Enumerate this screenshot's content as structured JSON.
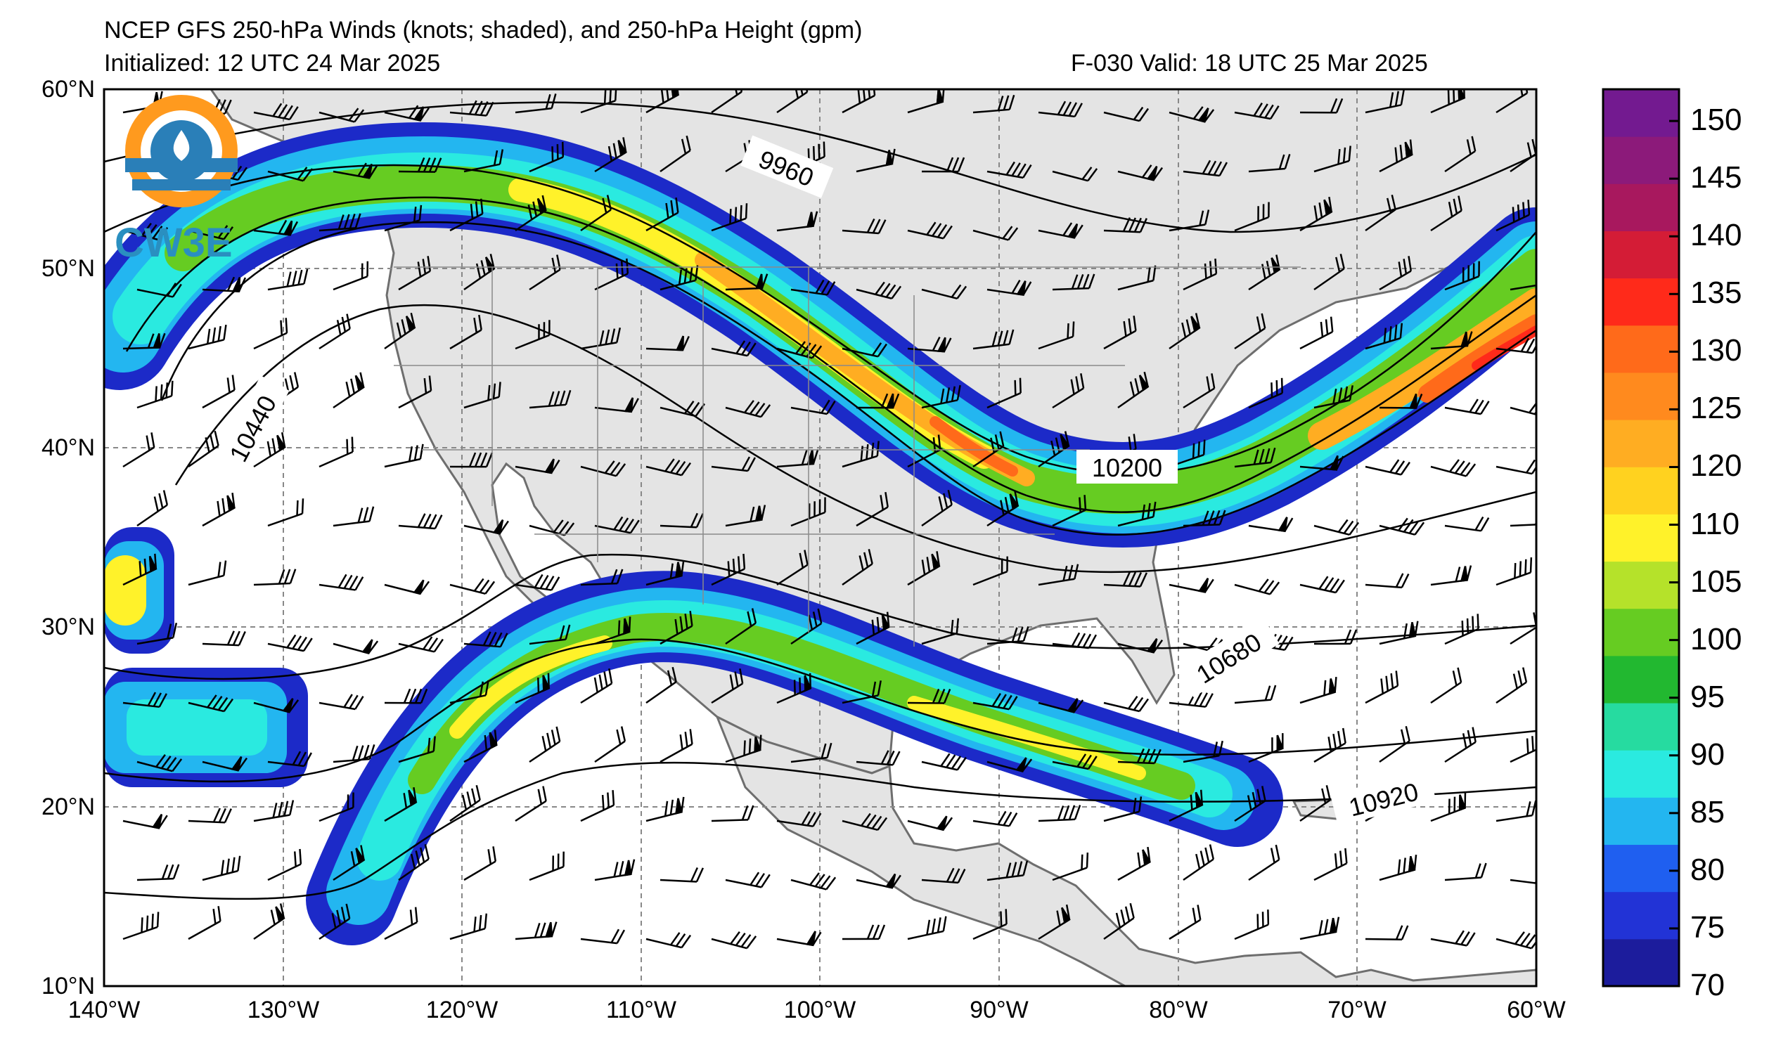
{
  "header": {
    "title_line1": "NCEP GFS 250-hPa Winds (knots; shaded), and 250-hPa Height (gpm)",
    "title_line2_left": "Initialized: 12 UTC 24 Mar 2025",
    "title_line2_right": "F-030  Valid: 18 UTC 25 Mar 2025"
  },
  "logo": {
    "text": "CW3E",
    "icon": "cw3e-logo-icon"
  },
  "axes": {
    "lat_labels": [
      "60°N",
      "50°N",
      "40°N",
      "30°N",
      "20°N",
      "10°N"
    ],
    "lon_labels": [
      "140°W",
      "130°W",
      "120°W",
      "110°W",
      "100°W",
      "90°W",
      "80°W",
      "70°W",
      "60°W"
    ],
    "lat_range": [
      10,
      60
    ],
    "lon_range": [
      -140,
      -60
    ],
    "grid": true
  },
  "contour_labels": [
    "9960",
    "10440",
    "10200",
    "10680",
    "10920"
  ],
  "colorbar": {
    "ticks": [
      "150",
      "145",
      "140",
      "135",
      "130",
      "125",
      "120",
      "110",
      "105",
      "100",
      "95",
      "90",
      "85",
      "80",
      "75",
      "70"
    ],
    "colors": [
      "#1c1c9c",
      "#2233d6",
      "#1f5ff0",
      "#23b6f0",
      "#2aeae0",
      "#26dba0",
      "#22b830",
      "#66cc22",
      "#b5e22a",
      "#fff22a",
      "#ffd21f",
      "#ffad22",
      "#ff8a1e",
      "#ff6a1a",
      "#ff2a1a",
      "#d41c36",
      "#a8185e",
      "#8c1a7a",
      "#731a90"
    ]
  },
  "map_colors": {
    "land": "#e4e4e4",
    "coast": "#6e6e6e",
    "contour": "#000000"
  }
}
